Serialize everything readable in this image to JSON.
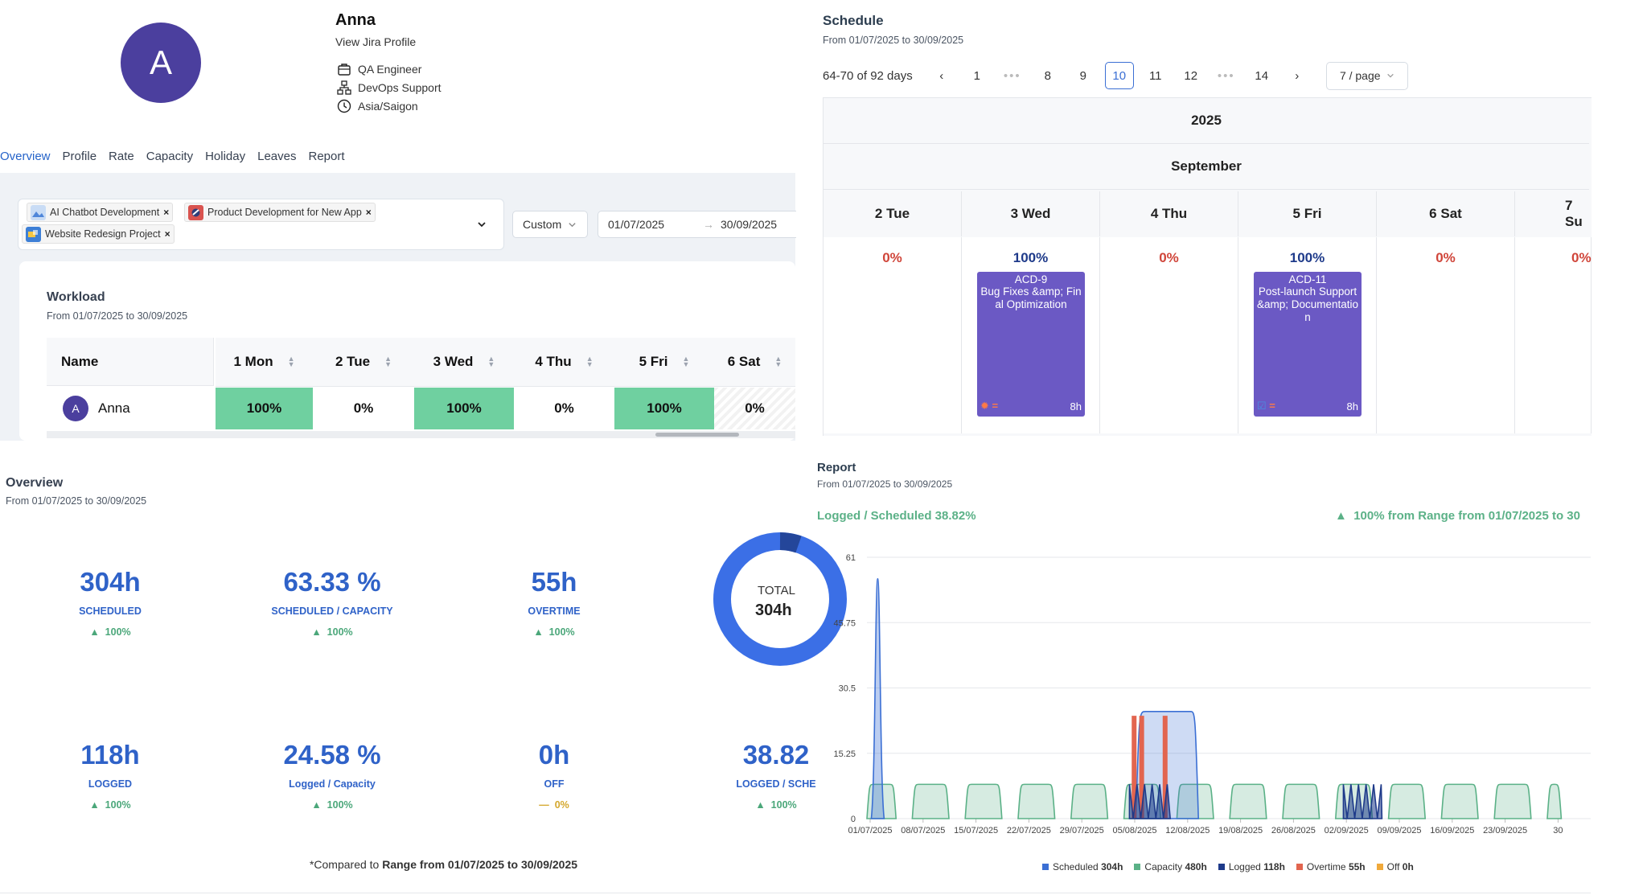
{
  "profile": {
    "avatar_letter": "A",
    "name": "Anna",
    "jira_link": "View Jira Profile",
    "role": "QA Engineer",
    "team": "DevOps Support",
    "timezone": "Asia/Saigon"
  },
  "tabs": [
    "Overview",
    "Profile",
    "Rate",
    "Capacity",
    "Holiday",
    "Leaves",
    "Report"
  ],
  "filters": {
    "projects": [
      "AI Chatbot Development",
      "Product Development for New App",
      "Website Redesign Project"
    ],
    "range_type": "Custom",
    "date_from": "01/07/2025",
    "date_to": "30/09/2025"
  },
  "workload": {
    "title": "Workload",
    "subtitle": "From 01/07/2025 to 30/09/2025",
    "name_header": "Name",
    "days": [
      "1 Mon",
      "2 Tue",
      "3 Wed",
      "4 Thu",
      "5 Fri",
      "6 Sat"
    ],
    "row": {
      "initial": "A",
      "name": "Anna",
      "values": [
        "100%",
        "0%",
        "100%",
        "0%",
        "100%",
        "0%"
      ]
    }
  },
  "overview": {
    "title": "Overview",
    "subtitle": "From 01/07/2025 to 30/09/2025",
    "stats_row1": [
      {
        "value": "304h",
        "label": "SCHEDULED",
        "change": "100%"
      },
      {
        "value": "63.33 %",
        "label": "SCHEDULED / CAPACITY",
        "change": "100%"
      },
      {
        "value": "55h",
        "label": "OVERTIME",
        "change": "100%"
      }
    ],
    "stats_row2": [
      {
        "value": "118h",
        "label": "LOGGED",
        "change": "100%"
      },
      {
        "value": "24.58 %",
        "label": "Logged / Capacity",
        "change": "100%"
      },
      {
        "value": "0h",
        "label": "OFF",
        "change": "0%"
      },
      {
        "value": "38.82",
        "label": "LOGGED / SCHE",
        "change": "100%"
      }
    ],
    "donut": {
      "label": "TOTAL",
      "value": "304h"
    },
    "compare_prefix": "*Compared to ",
    "compare_range": "Range from 01/07/2025 to 30/09/2025"
  },
  "schedule": {
    "title": "Schedule",
    "subtitle": "From 01/07/2025 to 30/09/2025",
    "range_text": "64-70 of 92 days",
    "pages": [
      "1",
      "8",
      "9",
      "10",
      "11",
      "12",
      "14"
    ],
    "current_page": "10",
    "page_size": "7 / page",
    "year": "2025",
    "month": "September",
    "days": [
      {
        "label": "2 Tue",
        "pct": "0%"
      },
      {
        "label": "3 Wed",
        "pct": "100%",
        "task": {
          "key": "ACD-9",
          "title": "Bug Fixes &amp; Final Optimization",
          "hours": "8h"
        }
      },
      {
        "label": "4 Thu",
        "pct": "0%"
      },
      {
        "label": "5 Fri",
        "pct": "100%",
        "task": {
          "key": "ACD-11",
          "title": "Post-launch Support &amp; Documentation",
          "hours": "8h"
        }
      },
      {
        "label": "6 Sat",
        "pct": "0%"
      },
      {
        "label": "7 Su",
        "pct": "0%"
      }
    ]
  },
  "report": {
    "title": "Report",
    "subtitle": "From 01/07/2025 to 30/09/2025",
    "ratio": "Logged / Scheduled 38.82%",
    "change": "100% from Range from 01/07/2025 to 30",
    "legend": [
      {
        "name": "Scheduled",
        "value": "304h",
        "color": "#3b6fd4"
      },
      {
        "name": "Capacity",
        "value": "480h",
        "color": "#5bb187"
      },
      {
        "name": "Logged",
        "value": "118h",
        "color": "#1e3a8a"
      },
      {
        "name": "Overtime",
        "value": "55h",
        "color": "#e2654f"
      },
      {
        "name": "Off",
        "value": "0h",
        "color": "#f0a93b"
      }
    ]
  },
  "chart_data": {
    "type": "area",
    "ylim": [
      0,
      61
    ],
    "yticks": [
      "0",
      "15.25",
      "30.5",
      "45.75",
      "61"
    ],
    "xticks": [
      "01/07/2025",
      "08/07/2025",
      "15/07/2025",
      "22/07/2025",
      "29/07/2025",
      "05/08/2025",
      "12/08/2025",
      "19/08/2025",
      "26/08/2025",
      "02/09/2025",
      "09/09/2025",
      "16/09/2025",
      "23/09/2025",
      "30"
    ],
    "series": [
      {
        "name": "Capacity",
        "shape": "weekday blocks",
        "values_per_weekday": 8
      },
      {
        "name": "Scheduled",
        "peaks": [
          {
            "date": "02/07/2025",
            "value": 56
          },
          {
            "date": "07/08/2025-12/08/2025",
            "value": 25
          }
        ]
      },
      {
        "name": "Overtime",
        "peaks": [
          {
            "date": "05/08/2025",
            "value": 24
          },
          {
            "date": "06/08/2025",
            "value": 24
          },
          {
            "date": "09/08/2025",
            "value": 24
          }
        ]
      },
      {
        "name": "Logged",
        "peaks": [
          {
            "date": "05/08/2025-09/08/2025",
            "value": 8
          },
          {
            "date": "01/09/2025-05/09/2025",
            "value": 8
          }
        ]
      }
    ]
  }
}
